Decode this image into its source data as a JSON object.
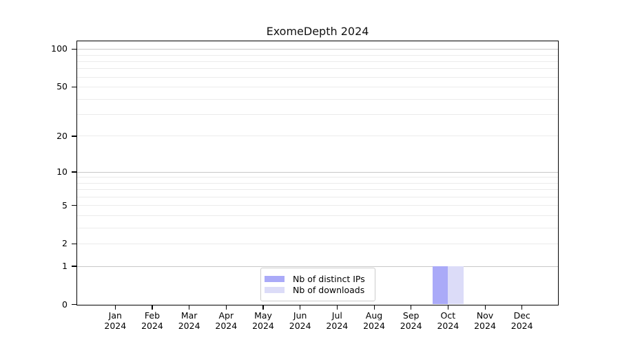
{
  "chart_data": {
    "type": "bar",
    "title": "ExomeDepth 2024",
    "categories": [
      "Jan",
      "Feb",
      "Mar",
      "Apr",
      "May",
      "Jun",
      "Jul",
      "Aug",
      "Sep",
      "Oct",
      "Nov",
      "Dec"
    ],
    "category_year": "2024",
    "series": [
      {
        "name": "Nb of distinct IPs",
        "color": "#aaaaf8",
        "values": [
          0,
          0,
          0,
          0,
          0,
          0,
          0,
          0,
          0,
          1,
          0,
          0
        ]
      },
      {
        "name": "Nb of downloads",
        "color": "#dcdcf8",
        "values": [
          0,
          0,
          0,
          0,
          0,
          0,
          0,
          0,
          0,
          1,
          0,
          0
        ]
      }
    ],
    "xlabel": "",
    "ylabel": "",
    "y_scale": "log10(1+x)",
    "ylim": [
      0,
      115
    ],
    "y_ticks": [
      0,
      1,
      2,
      5,
      10,
      20,
      50,
      100
    ],
    "y_gridlines_major": [
      1,
      10,
      100
    ],
    "y_gridlines_minor": [
      2,
      3,
      4,
      5,
      6,
      7,
      8,
      9,
      20,
      30,
      40,
      50,
      60,
      70,
      80,
      90
    ],
    "grid": "horizontal",
    "legend_position": "lower center",
    "colors": {
      "axis": "#000000",
      "text": "#000000",
      "grid_major": "#c8c8c8",
      "grid_minor": "#ebebeb",
      "plot_background": "#ffffff"
    }
  }
}
